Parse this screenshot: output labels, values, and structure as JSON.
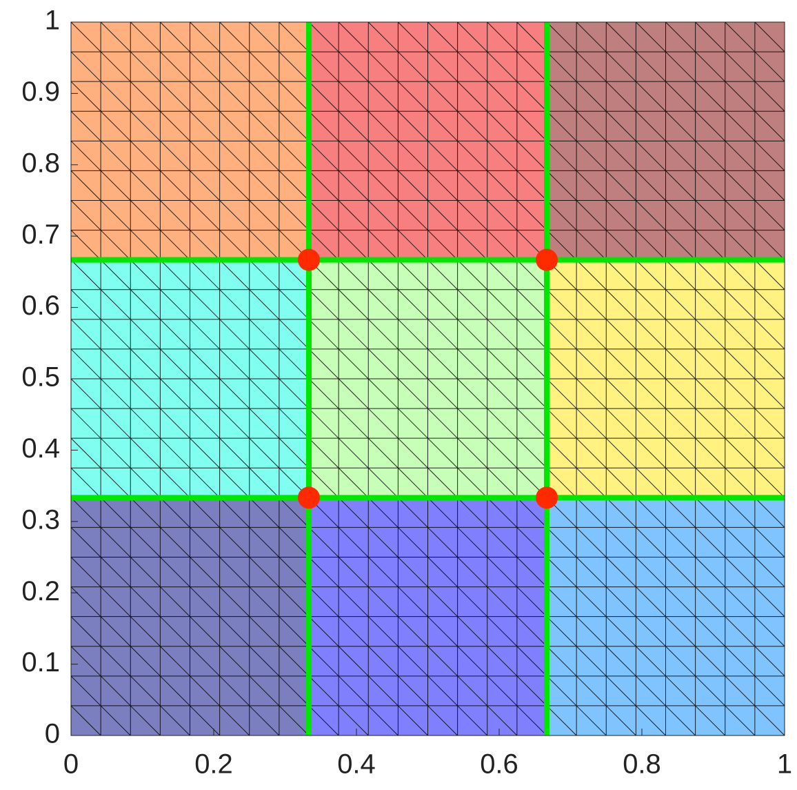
{
  "chart_data": {
    "type": "mesh",
    "xlim": [
      0,
      1
    ],
    "ylim": [
      0,
      1
    ],
    "xticks": [
      0,
      0.2,
      0.4,
      0.6,
      0.8,
      1
    ],
    "yticks": [
      0,
      0.1,
      0.2,
      0.3,
      0.4,
      0.5,
      0.6,
      0.7,
      0.8,
      0.9,
      1
    ],
    "mesh_divisions": 24,
    "mesh_color": "#000000",
    "interfaces": {
      "x": [
        0.3333,
        0.6667
      ],
      "y": [
        0.3333,
        0.6667
      ],
      "color": "#00e600"
    },
    "subdomain_colors": [
      [
        "#7b7ebf",
        "#8080ff",
        "#80c4ff"
      ],
      [
        "#80fff0",
        "#c8ffb8",
        "#fff280"
      ],
      [
        "#ffb07f",
        "#f77f80",
        "#bf7f7f"
      ]
    ],
    "cross_points": {
      "x": [
        0.3333,
        0.6667,
        0.3333,
        0.6667
      ],
      "y": [
        0.3333,
        0.3333,
        0.6667,
        0.6667
      ],
      "color": "#ff2a00"
    }
  }
}
